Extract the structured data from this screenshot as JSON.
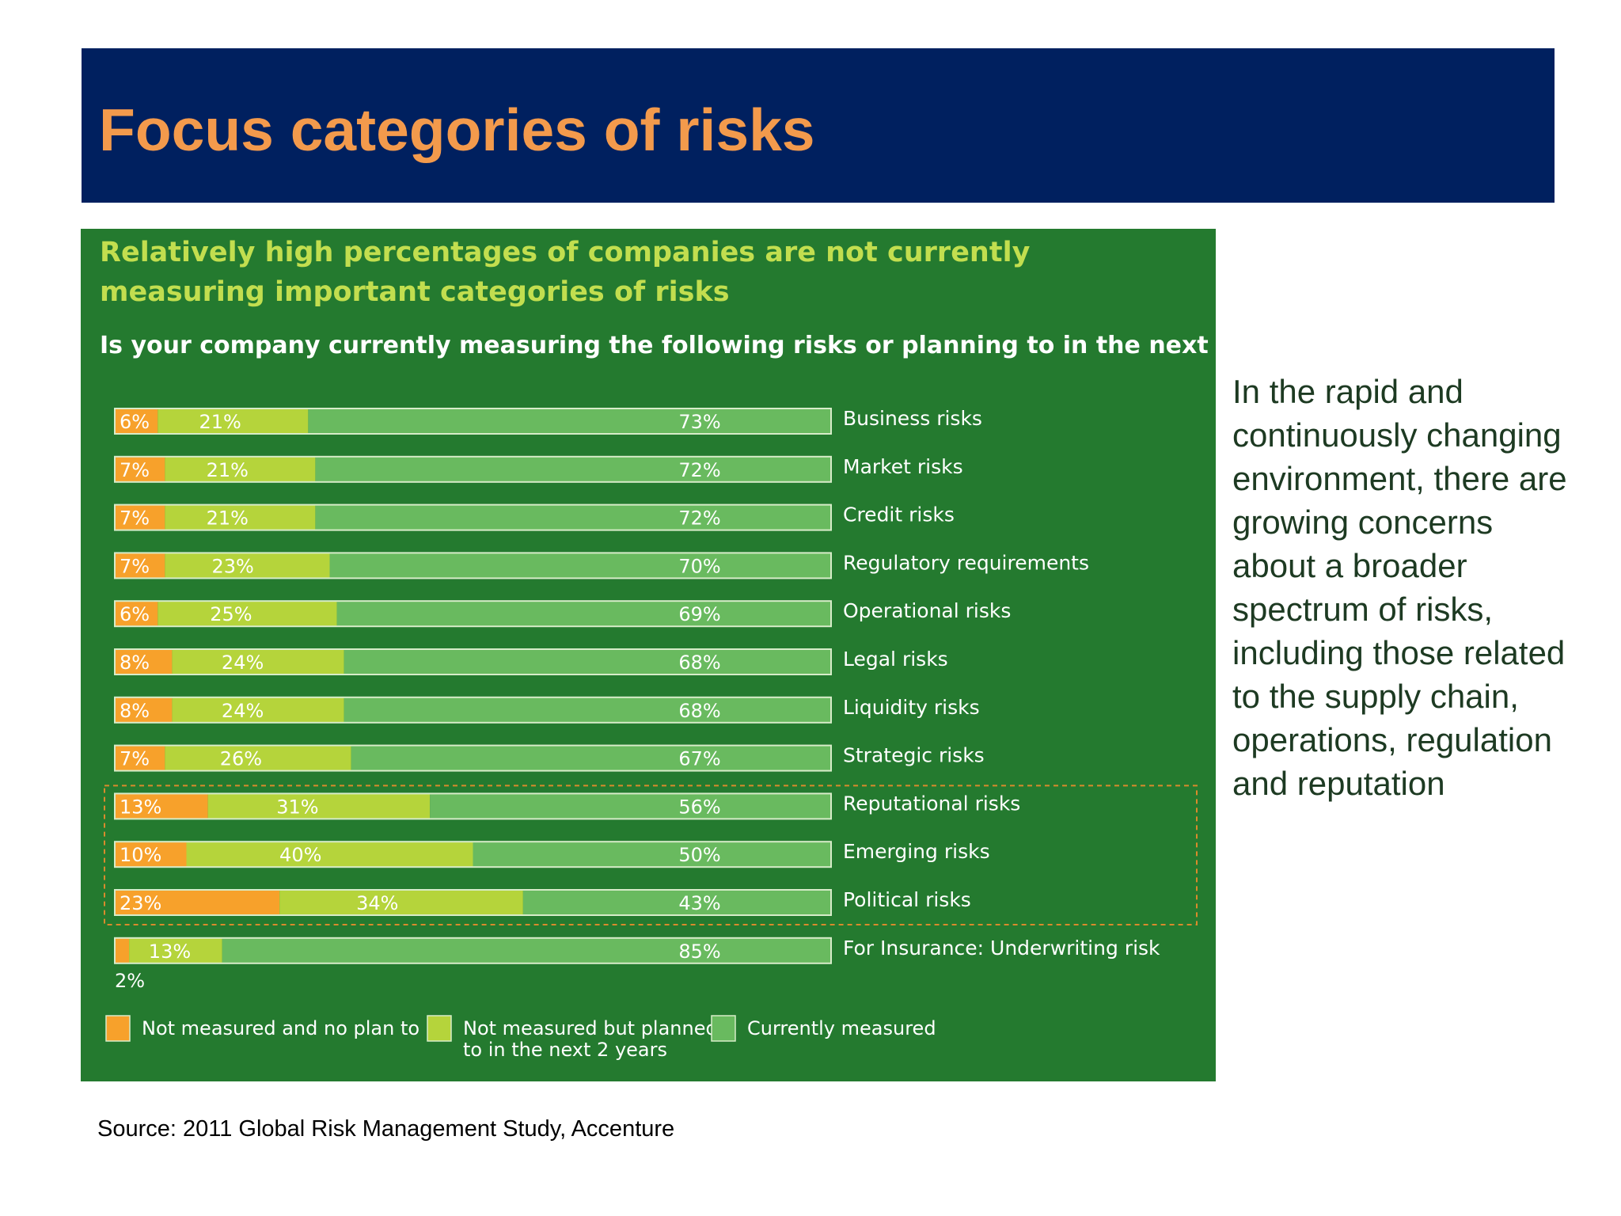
{
  "slide": {
    "title": "Focus categories of risks",
    "side_text": "In the rapid and continuously changing environment, there are growing concerns about a broader spectrum of risks, including those related to the supply chain, operations, regulation and reputation",
    "source": "Source: 2011 Global Risk Management Study, Accenture"
  },
  "colors": {
    "title_bar": "#00205f",
    "title_text": "#f39a4c",
    "panel_background": "#247a2f",
    "chart_title": "#c2de4f",
    "side_text": "#1d3a22"
  },
  "chart_data": {
    "type": "bar",
    "orientation": "horizontal",
    "stacked": true,
    "title": "Relatively high percentages of companies are not currently measuring important categories of risks",
    "subtitle": "Is your company currently measuring the following risks or planning to in the next two years?",
    "xlim": [
      0,
      100
    ],
    "grid": false,
    "legend_position": "bottom",
    "categories": [
      "Business risks",
      "Market risks",
      "Credit risks",
      "Regulatory requirements",
      "Operational risks",
      "Legal risks",
      "Liquidity risks",
      "Strategic risks",
      "Reputational risks",
      "Emerging risks",
      "Political risks",
      "For Insurance: Underwriting risk"
    ],
    "series": [
      {
        "name": "Not measured and no plan to",
        "color": "#f7a12b",
        "values": [
          6,
          7,
          7,
          7,
          6,
          8,
          8,
          7,
          13,
          10,
          23,
          2
        ],
        "labels": [
          "6%",
          "7%",
          "7%",
          "7%",
          "6%",
          "8%",
          "8%",
          "7%",
          "13%",
          "10%",
          "23%",
          "2%"
        ]
      },
      {
        "name": "Not measured but planned to in the next 2 years",
        "color": "#b5d43b",
        "values": [
          21,
          21,
          21,
          23,
          25,
          24,
          24,
          26,
          31,
          40,
          34,
          13
        ],
        "labels": [
          "21%",
          "21%",
          "21%",
          "23%",
          "25%",
          "24%",
          "24%",
          "26%",
          "31%",
          "40%",
          "34%",
          "13%"
        ]
      },
      {
        "name": "Currently measured",
        "color": "#69ba5f",
        "values": [
          73,
          72,
          72,
          70,
          69,
          68,
          68,
          67,
          56,
          50,
          43,
          85
        ],
        "labels": [
          "73%",
          "72%",
          "72%",
          "70%",
          "69%",
          "68%",
          "68%",
          "67%",
          "56%",
          "50%",
          "43%",
          "85%"
        ]
      }
    ],
    "highlighted_categories": [
      "Reputational risks",
      "Emerging risks",
      "Political risks"
    ],
    "highlight_color": "#d98a2c"
  }
}
